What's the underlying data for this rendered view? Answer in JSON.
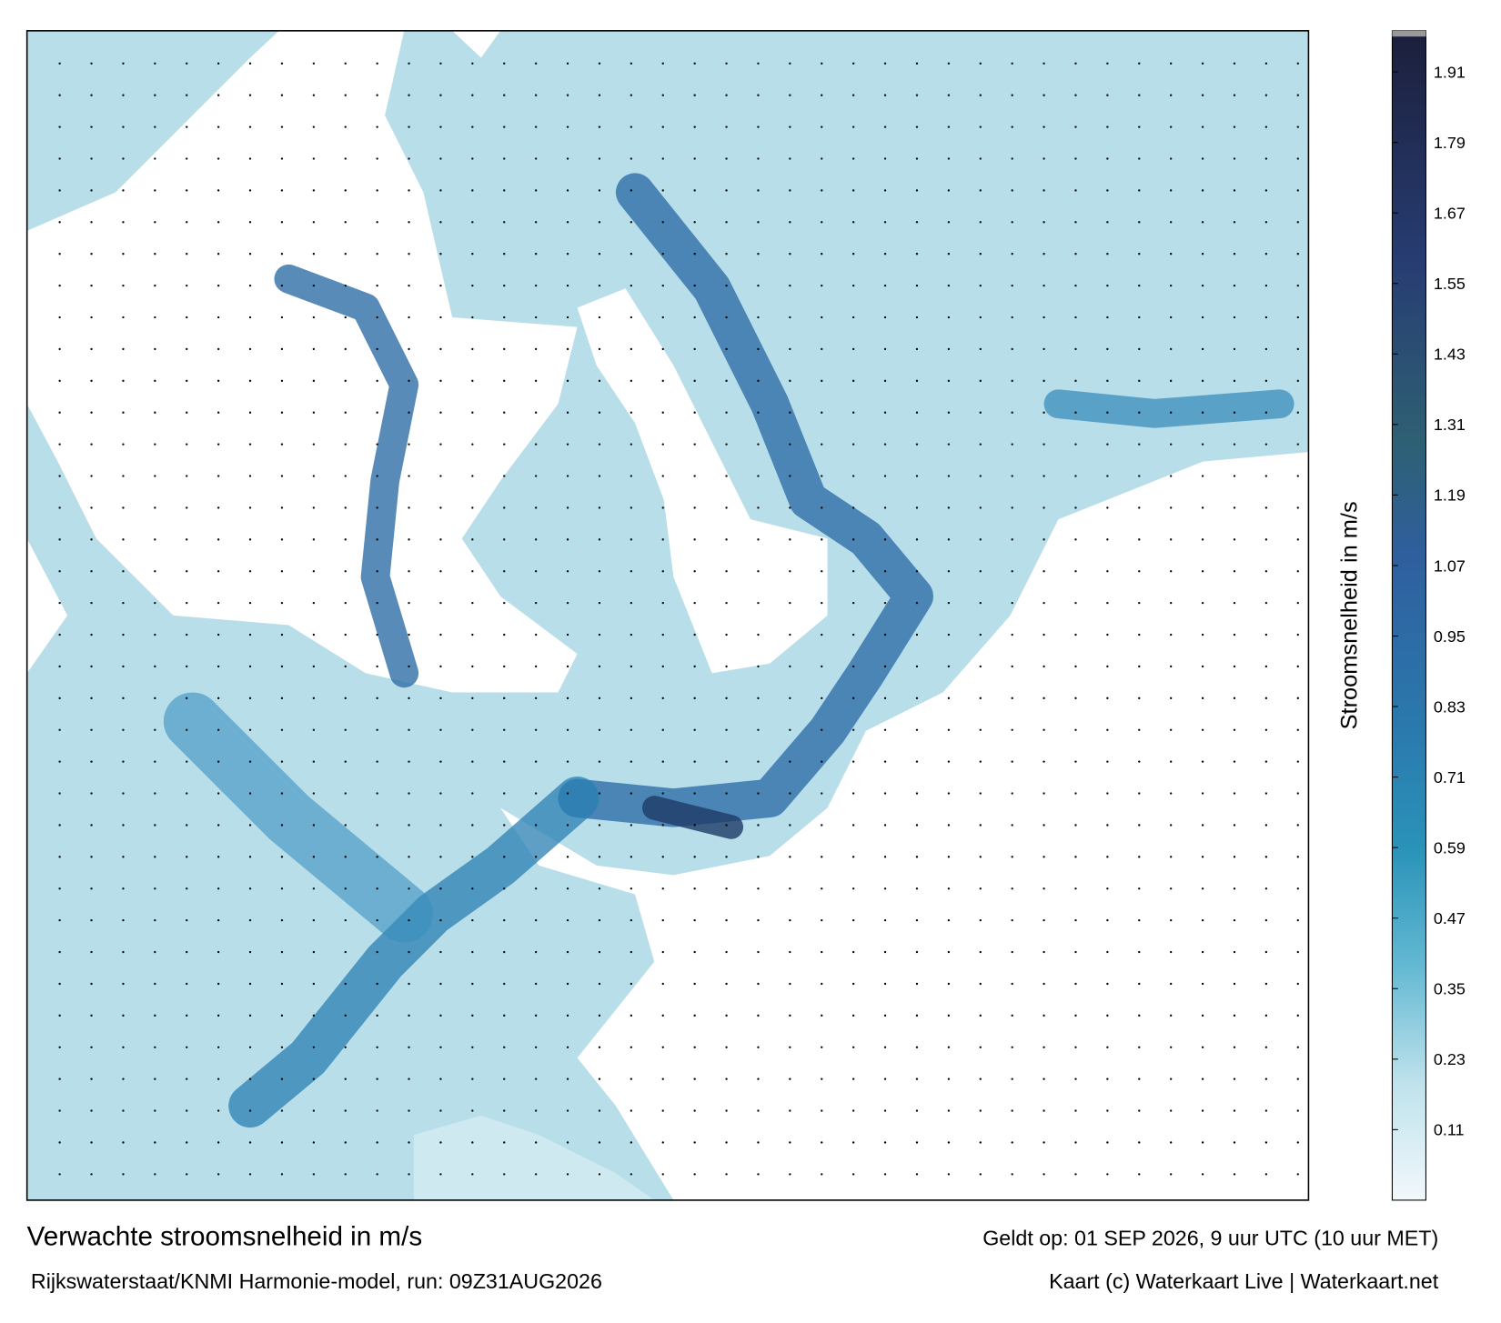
{
  "header": {
    "title": "Verwachte stroomsnelheid in m/s",
    "valid": "Geldt op: 01 SEP 2026, 9 uur UTC (10 uur MET)",
    "source": "Rijkswaterstaat/KNMI Harmonie-model, run: 09Z31AUG2026",
    "credit": "Kaart (c) Waterkaart Live | Waterkaart.net"
  },
  "colorbar": {
    "label": "Stroomsnelheid in m/s",
    "ylim": [
      -0.01,
      1.98
    ],
    "yticks": [
      0.11,
      0.23,
      0.35,
      0.47,
      0.59,
      0.71,
      0.83,
      0.95,
      1.07,
      1.19,
      1.31,
      1.43,
      1.55,
      1.67,
      1.79,
      1.91
    ]
  }
}
